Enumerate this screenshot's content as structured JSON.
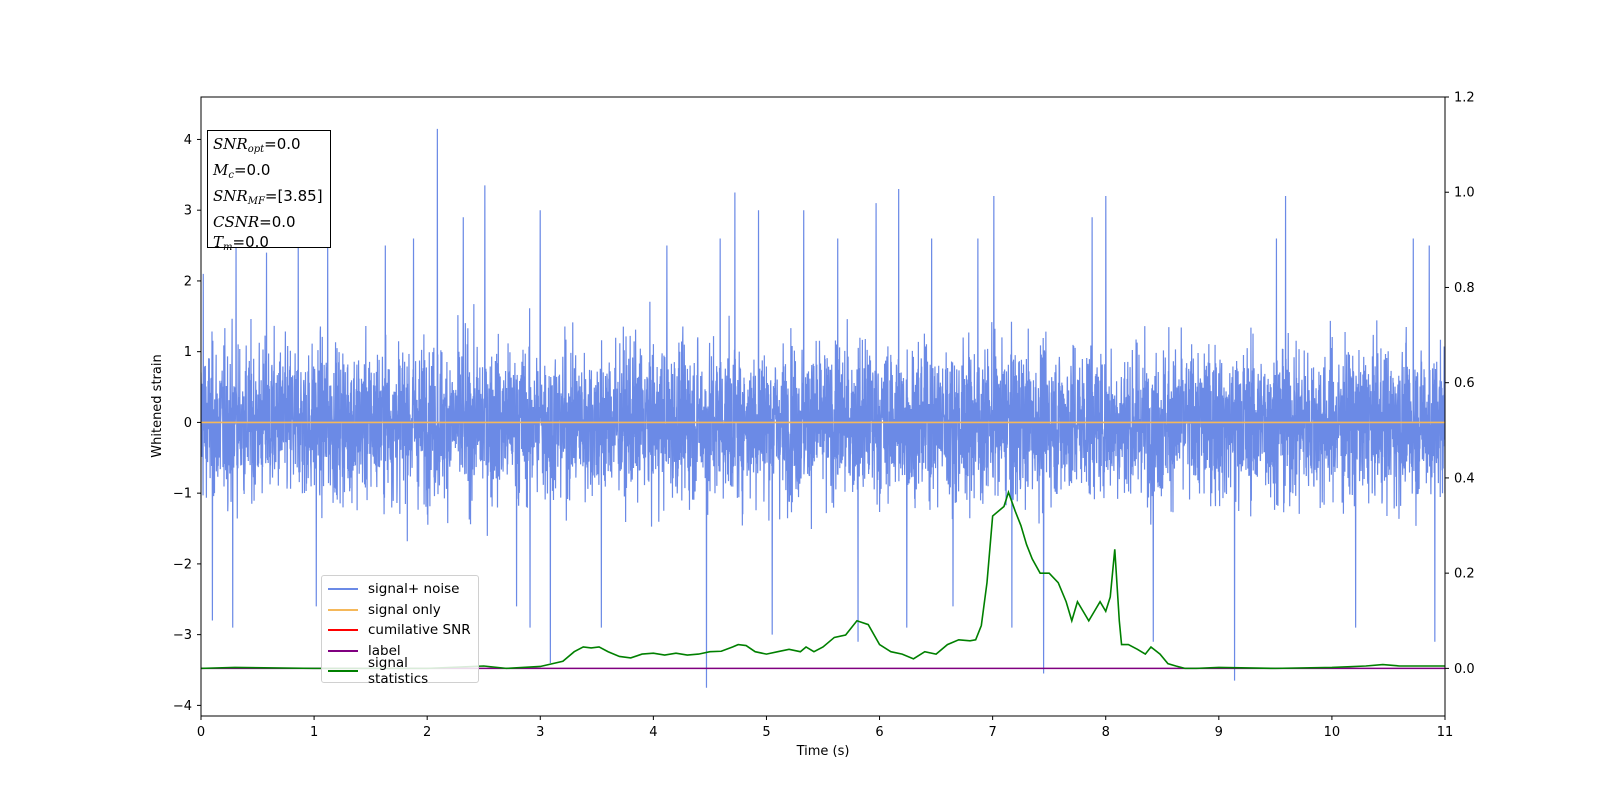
{
  "chart_data": {
    "type": "line",
    "xlabel": "Time (s)",
    "ylabel": "Whitened strain",
    "xlim": [
      0,
      11
    ],
    "ylim": [
      -4.15,
      4.6
    ],
    "ylim_right": [
      -0.1,
      1.2
    ],
    "x_ticks": [
      "0",
      "1",
      "2",
      "3",
      "4",
      "5",
      "6",
      "7",
      "8",
      "9",
      "10",
      "11"
    ],
    "y_ticks_left": [
      "−4",
      "−3",
      "−2",
      "−1",
      "0",
      "1",
      "2",
      "3",
      "4"
    ],
    "y_ticks_right": [
      "0.0",
      "0.2",
      "0.4",
      "0.6",
      "0.8",
      "1.0",
      "1.2"
    ],
    "grid": false,
    "legend_position": "lower-left",
    "annotation": {
      "snr_opt": "=0.0",
      "mc": "=0.0",
      "snr_mf": "=[3.85]",
      "csnr": "=0.0",
      "tm": "=0.0"
    },
    "series": [
      {
        "name": "signal+ noise",
        "color": "#6b8ae6",
        "axis": "left",
        "note": "dense noise, roughly +/-2 band with spikes; peaks listed",
        "spikes": [
          [
            0.02,
            2.1
          ],
          [
            0.1,
            -2.8
          ],
          [
            0.28,
            -2.9
          ],
          [
            0.31,
            2.6
          ],
          [
            0.58,
            2.4
          ],
          [
            0.86,
            2.6
          ],
          [
            1.02,
            -2.6
          ],
          [
            1.12,
            2.6
          ],
          [
            1.63,
            2.5
          ],
          [
            1.88,
            2.6
          ],
          [
            2.09,
            4.15
          ],
          [
            2.32,
            2.9
          ],
          [
            2.51,
            3.35
          ],
          [
            2.79,
            -2.6
          ],
          [
            2.91,
            -2.9
          ],
          [
            3.0,
            3.0
          ],
          [
            3.09,
            -3.4
          ],
          [
            3.54,
            -2.9
          ],
          [
            4.12,
            2.5
          ],
          [
            4.47,
            -3.75
          ],
          [
            4.59,
            2.6
          ],
          [
            4.72,
            3.25
          ],
          [
            4.93,
            3.0
          ],
          [
            5.05,
            -3.0
          ],
          [
            5.33,
            3.0
          ],
          [
            5.63,
            2.6
          ],
          [
            5.81,
            -3.1
          ],
          [
            5.97,
            3.1
          ],
          [
            6.17,
            3.3
          ],
          [
            6.24,
            -2.9
          ],
          [
            6.46,
            2.6
          ],
          [
            6.65,
            -2.6
          ],
          [
            6.87,
            2.6
          ],
          [
            7.01,
            3.2
          ],
          [
            7.17,
            -2.9
          ],
          [
            7.45,
            -3.55
          ],
          [
            7.88,
            2.9
          ],
          [
            8.0,
            3.2
          ],
          [
            8.42,
            -3.1
          ],
          [
            9.14,
            -3.65
          ],
          [
            9.51,
            2.6
          ],
          [
            9.59,
            3.2
          ],
          [
            10.21,
            -2.9
          ],
          [
            10.72,
            2.6
          ],
          [
            10.86,
            2.5
          ],
          [
            10.91,
            -3.1
          ]
        ]
      },
      {
        "name": "signal only",
        "color": "#f5b85a",
        "axis": "left",
        "x": [
          0,
          11
        ],
        "y": [
          0.0,
          0.0
        ]
      },
      {
        "name": "cumilative SNR",
        "color": "#ff0000",
        "axis": "left",
        "x": [],
        "y": []
      },
      {
        "name": "label",
        "color": "#800080",
        "axis": "right",
        "x": [
          0,
          11
        ],
        "y": [
          0.0,
          0.0
        ]
      },
      {
        "name": "signal statistics",
        "color": "#008000",
        "axis": "right",
        "x": [
          0,
          0.3,
          1.0,
          2.0,
          2.5,
          2.7,
          3.0,
          3.2,
          3.3,
          3.38,
          3.45,
          3.52,
          3.6,
          3.7,
          3.8,
          3.9,
          4.0,
          4.1,
          4.2,
          4.3,
          4.4,
          4.5,
          4.6,
          4.7,
          4.75,
          4.82,
          4.9,
          5.0,
          5.1,
          5.2,
          5.3,
          5.35,
          5.42,
          5.5,
          5.6,
          5.7,
          5.8,
          5.9,
          6.0,
          6.1,
          6.2,
          6.3,
          6.4,
          6.5,
          6.6,
          6.7,
          6.8,
          6.85,
          6.9,
          6.95,
          7.0,
          7.1,
          7.14,
          7.2,
          7.25,
          7.3,
          7.35,
          7.42,
          7.5,
          7.58,
          7.65,
          7.7,
          7.75,
          7.8,
          7.85,
          7.9,
          7.95,
          8.0,
          8.04,
          8.08,
          8.12,
          8.14,
          8.2,
          8.28,
          8.35,
          8.4,
          8.48,
          8.55,
          8.62,
          8.7,
          8.8,
          9.0,
          9.5,
          10.0,
          10.3,
          10.45,
          10.6,
          10.8,
          11.0
        ],
        "y": [
          0.0,
          0.002,
          0.0,
          0.0,
          0.005,
          0.0,
          0.004,
          0.015,
          0.035,
          0.045,
          0.043,
          0.045,
          0.035,
          0.025,
          0.022,
          0.03,
          0.032,
          0.028,
          0.032,
          0.028,
          0.03,
          0.035,
          0.036,
          0.045,
          0.05,
          0.048,
          0.035,
          0.03,
          0.035,
          0.04,
          0.035,
          0.045,
          0.035,
          0.045,
          0.065,
          0.07,
          0.1,
          0.092,
          0.05,
          0.035,
          0.03,
          0.02,
          0.035,
          0.03,
          0.05,
          0.06,
          0.058,
          0.06,
          0.09,
          0.18,
          0.32,
          0.34,
          0.37,
          0.33,
          0.3,
          0.26,
          0.23,
          0.2,
          0.2,
          0.18,
          0.14,
          0.1,
          0.14,
          0.12,
          0.1,
          0.12,
          0.14,
          0.12,
          0.15,
          0.25,
          0.1,
          0.05,
          0.05,
          0.04,
          0.03,
          0.045,
          0.03,
          0.01,
          0.005,
          0.0,
          0.0,
          0.002,
          0.0,
          0.002,
          0.005,
          0.008,
          0.005,
          0.005,
          0.005
        ]
      }
    ]
  }
}
